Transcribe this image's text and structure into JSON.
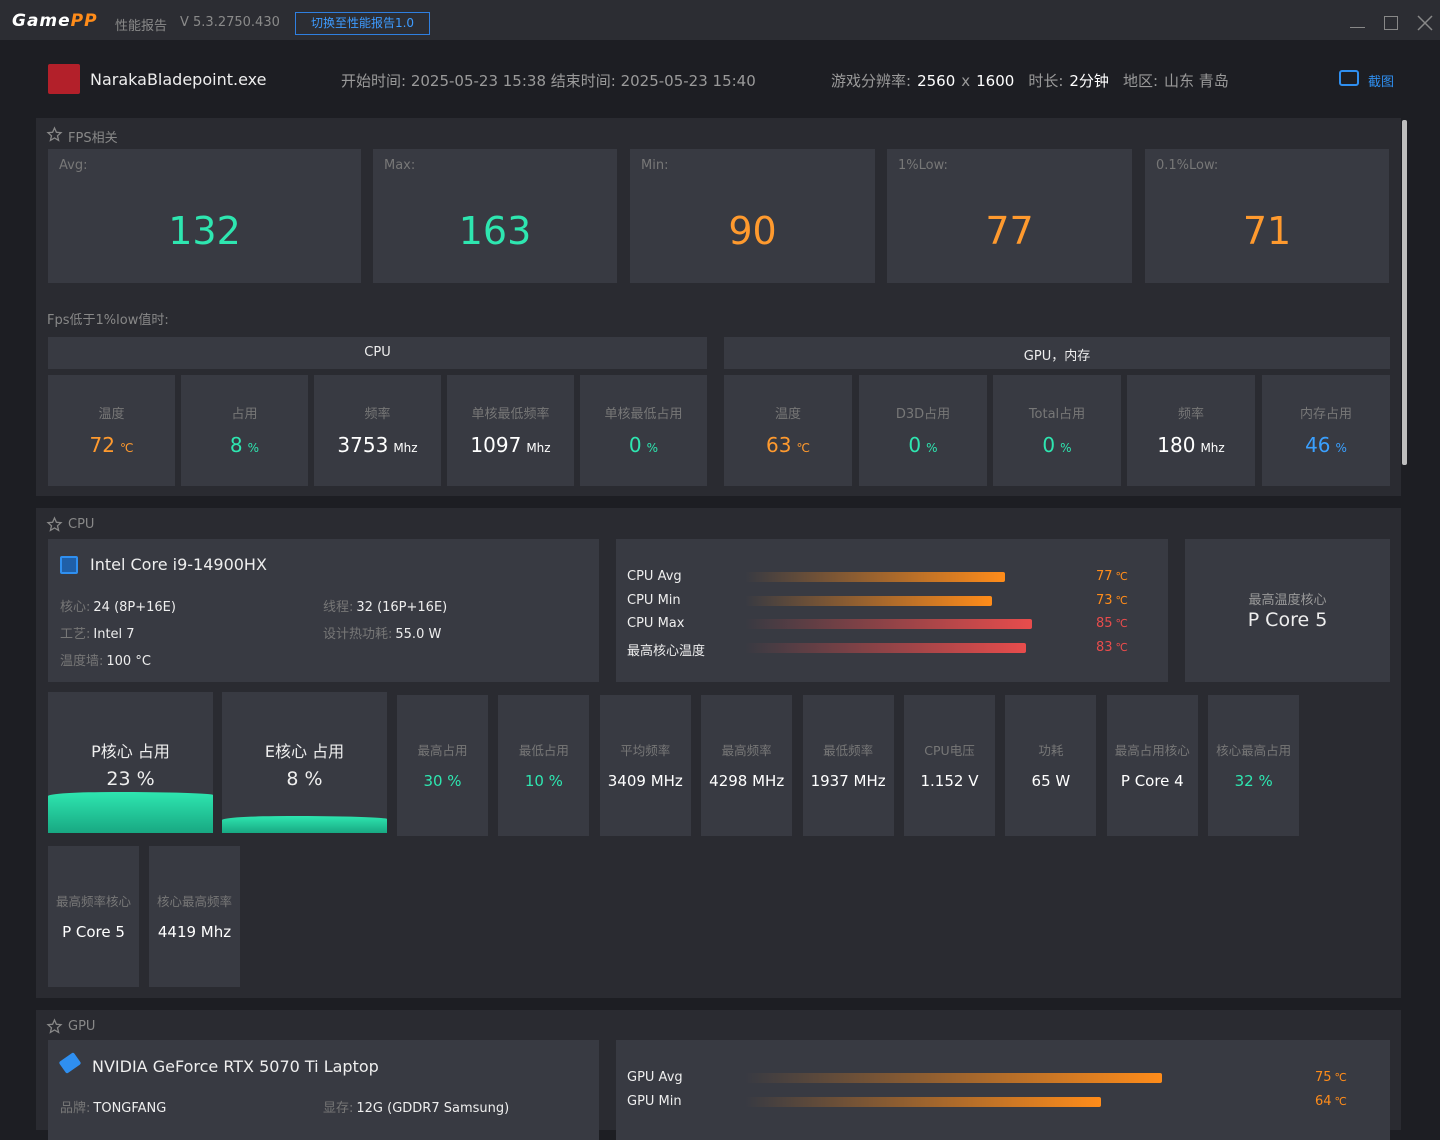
{
  "titlebar": {
    "logo_game": "Game",
    "logo_pp": "PP",
    "report": "性能报告",
    "version": "V 5.3.2750.430",
    "switch_button": "切换至性能报告1.0"
  },
  "header": {
    "game": "NarakaBladepoint.exe",
    "time": "开始时间: 2025-05-23 15:38 结束时间: 2025-05-23 15:40",
    "resolution_label": "游戏分辨率:",
    "resolution_width": "2560",
    "resolution_x": "x",
    "resolution_height": "1600",
    "duration_label": "时长:",
    "duration": "2分钟",
    "region_label": "地区:",
    "region": "山东 青岛",
    "screenshot": "截图"
  },
  "fps": {
    "title": "FPS相关",
    "cards": [
      {
        "label": "Avg:",
        "value": "132",
        "color": "#2ee6b0"
      },
      {
        "label": "Max:",
        "value": "163",
        "color": "#2ee6b0"
      },
      {
        "label": "Min:",
        "value": "90",
        "color": "#ff9a2e"
      },
      {
        "label": "1%Low:",
        "value": "77",
        "color": "#ff9a2e"
      },
      {
        "label": "0.1%Low:",
        "value": "71",
        "color": "#ff9a2e"
      }
    ],
    "low_title": "Fps低于1%low值时:",
    "cpu_header": "CPU",
    "gpu_header": "GPU，内存",
    "cpu_cells": [
      {
        "label": "温度",
        "value": "72",
        "unit": "℃",
        "color": "#ff9a2e"
      },
      {
        "label": "占用",
        "value": "8",
        "unit": "%",
        "color": "#2ee6b0"
      },
      {
        "label": "频率",
        "value": "3753",
        "unit": "Mhz",
        "color": "#ffffff"
      },
      {
        "label": "单核最低频率",
        "value": "1097",
        "unit": "Mhz",
        "color": "#ffffff"
      },
      {
        "label": "单核最低占用",
        "value": "0",
        "unit": "%",
        "color": "#2ee6b0"
      }
    ],
    "gpu_cells": [
      {
        "label": "温度",
        "value": "63",
        "unit": "℃",
        "color": "#ff9a2e"
      },
      {
        "label": "D3D占用",
        "value": "0",
        "unit": "%",
        "color": "#2ee6b0"
      },
      {
        "label": "Total占用",
        "value": "0",
        "unit": "%",
        "color": "#2ee6b0"
      },
      {
        "label": "频率",
        "value": "180",
        "unit": "Mhz",
        "color": "#ffffff"
      },
      {
        "label": "内存占用",
        "value": "46",
        "unit": "%",
        "color": "#3aa0ff"
      }
    ]
  },
  "cpu": {
    "title": "CPU",
    "name": "Intel Core i9-14900HX",
    "specs": [
      {
        "label": "核心:",
        "value": "24 (8P+16E)"
      },
      {
        "label": "线程:",
        "value": "32 (16P+16E)"
      },
      {
        "label": "工艺:",
        "value": "Intel 7"
      },
      {
        "label": "设计热功耗:",
        "value": "55.0 W"
      },
      {
        "label": "温度墙:",
        "value": "100 °C"
      }
    ],
    "temps": [
      {
        "name": "CPU Avg",
        "value": 77,
        "unit": "℃",
        "color": "#ff8c1a"
      },
      {
        "name": "CPU Min",
        "value": 73,
        "unit": "℃",
        "color": "#ff8c1a"
      },
      {
        "name": "CPU Max",
        "value": 85,
        "unit": "℃",
        "color": "#e84c4c"
      },
      {
        "name": "最高核心温度",
        "value": 83,
        "unit": "℃",
        "color": "#e84c4c"
      }
    ],
    "max_temp_core_label": "最高温度核心",
    "max_temp_core": "P Core 5",
    "usage": [
      {
        "label": "P核心 占用",
        "value": 23,
        "unit": "%"
      },
      {
        "label": "E核心 占用",
        "value": 8,
        "unit": "%"
      }
    ],
    "tiles": [
      {
        "label": "最高占用",
        "value": "30 %",
        "color": "#2ee6b0"
      },
      {
        "label": "最低占用",
        "value": "10 %",
        "color": "#2ee6b0"
      },
      {
        "label": "平均频率",
        "value": "3409 MHz",
        "color": "#ffffff"
      },
      {
        "label": "最高频率",
        "value": "4298 MHz",
        "color": "#ffffff"
      },
      {
        "label": "最低频率",
        "value": "1937 MHz",
        "color": "#ffffff"
      },
      {
        "label": "CPU电压",
        "value": "1.152 V",
        "color": "#ffffff"
      },
      {
        "label": "功耗",
        "value": "65 W",
        "color": "#ffffff"
      },
      {
        "label": "最高占用核心",
        "value": "P Core 4",
        "color": "#ffffff"
      },
      {
        "label": "核心最高占用",
        "value": "32 %",
        "color": "#2ee6b0"
      },
      {
        "label": "最高频率核心",
        "value": "P Core 5",
        "color": "#ffffff"
      },
      {
        "label": "核心最高频率",
        "value": "4419 Mhz",
        "color": "#ffffff"
      }
    ]
  },
  "gpu": {
    "title": "GPU",
    "name": "NVIDIA GeForce RTX 5070 Ti Laptop",
    "specs": [
      {
        "label": "品牌:",
        "value": "TONGFANG"
      },
      {
        "label": "显存:",
        "value": "12G (GDDR7 Samsung)"
      }
    ],
    "temps": [
      {
        "name": "GPU Avg",
        "value": 75,
        "unit": "℃",
        "color": "#ff8c1a"
      },
      {
        "name": "GPU Min",
        "value": 64,
        "unit": "℃",
        "color": "#ff8c1a"
      }
    ]
  }
}
